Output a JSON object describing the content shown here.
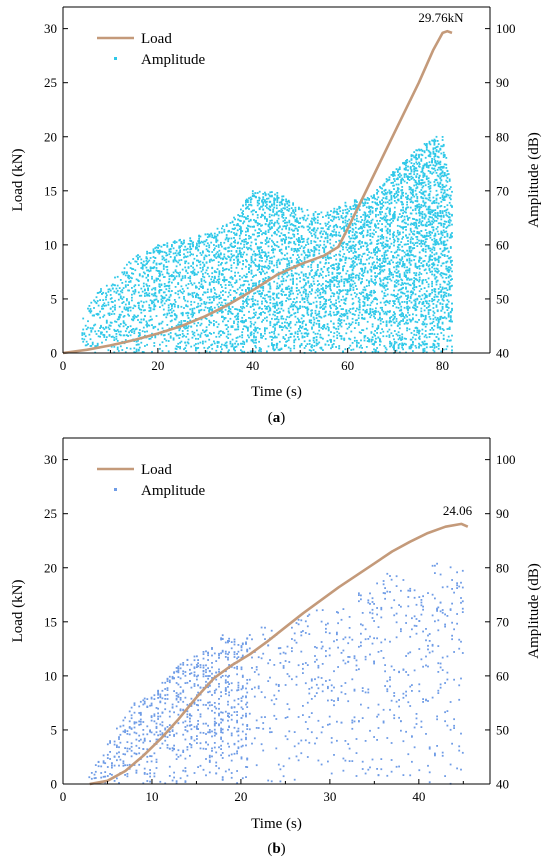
{
  "colors": {
    "load": "#c49a7a",
    "amplitude": "#2ec8e8",
    "amplitude_b": "#6f9ce6",
    "axis": "#000000"
  },
  "chart_data": [
    {
      "panel": "(a)",
      "panel_letter": "a",
      "type": "line+scatter",
      "xlabel": "Time (s)",
      "ylabel": "Load (kN)",
      "y2label": "Amplitude (dB)",
      "xlim": [
        0,
        90
      ],
      "ylim": [
        0,
        32
      ],
      "y2lim": [
        40,
        104
      ],
      "xticks": [
        0,
        20,
        40,
        60,
        80
      ],
      "yticks": [
        0,
        5,
        10,
        15,
        20,
        25,
        30
      ],
      "y2ticks": [
        40,
        50,
        60,
        70,
        80,
        90,
        100
      ],
      "legend": {
        "placement": "top-left",
        "entries": [
          "Load",
          "Amplitude"
        ]
      },
      "annotation": {
        "text": "29.76kN",
        "x": 80.5,
        "y": 29.76
      },
      "series": [
        {
          "name": "Load",
          "axis": "left",
          "type": "line",
          "x": [
            0,
            5,
            10,
            15,
            20,
            25,
            30,
            35,
            40,
            45,
            50,
            55,
            58,
            60,
            65,
            70,
            75,
            78,
            80,
            81,
            82
          ],
          "y": [
            0,
            0.3,
            0.7,
            1.2,
            1.8,
            2.5,
            3.4,
            4.5,
            5.8,
            7.2,
            8.2,
            9.0,
            9.8,
            11.5,
            16.0,
            20.5,
            25.0,
            28.0,
            29.6,
            29.76,
            29.6
          ]
        },
        {
          "name": "Amplitude",
          "axis": "right",
          "type": "scatter",
          "envelope": {
            "x": [
              4,
              6,
              8,
              10,
              15,
              20,
              25,
              30,
              35,
              40,
              45,
              50,
              55,
              60,
              65,
              70,
              75,
              78,
              80,
              82
            ],
            "max_dB": [
              46,
              50,
              52,
              53,
              58,
              60,
              61,
              62,
              64,
              70,
              70,
              67,
              66,
              68,
              69,
              74,
              78,
              80,
              80,
              70
            ]
          }
        }
      ]
    },
    {
      "panel": "(b)",
      "panel_letter": "b",
      "type": "line+scatter",
      "xlabel": "Time (s)",
      "ylabel": "Load (kN)",
      "y2label": "Amplitude (dB)",
      "xlim": [
        0,
        48
      ],
      "ylim": [
        0,
        32
      ],
      "y2lim": [
        40,
        104
      ],
      "xticks": [
        0,
        10,
        20,
        30,
        40
      ],
      "yticks": [
        0,
        5,
        10,
        15,
        20,
        25,
        30
      ],
      "y2ticks": [
        40,
        50,
        60,
        70,
        80,
        90,
        100
      ],
      "legend": {
        "placement": "top-left",
        "entries": [
          "Load",
          "Amplitude"
        ]
      },
      "annotation": {
        "text": "24.06",
        "x": 44.8,
        "y": 24.06
      },
      "series": [
        {
          "name": "Load",
          "axis": "left",
          "type": "line",
          "x": [
            3,
            5,
            7,
            9,
            11,
            13,
            15,
            17,
            19,
            21,
            23,
            25,
            27,
            29,
            31,
            33,
            35,
            37,
            39,
            41,
            43,
            44.8,
            45.5
          ],
          "y": [
            0,
            0.3,
            1.2,
            2.6,
            4.2,
            6.0,
            8.0,
            9.8,
            11.0,
            12.0,
            13.2,
            14.5,
            15.8,
            17.0,
            18.2,
            19.3,
            20.4,
            21.5,
            22.4,
            23.2,
            23.8,
            24.06,
            23.8
          ]
        },
        {
          "name": "Amplitude",
          "axis": "right",
          "type": "scatter",
          "envelope": {
            "x": [
              3,
              5,
              8,
              10,
              13,
              15,
              18,
              20,
              22,
              25,
              28,
              30,
              33,
              35,
              38,
              40,
              42,
              45
            ],
            "max_dB": [
              42,
              48,
              55,
              57,
              62,
              64,
              68,
              66,
              70,
              68,
              74,
              72,
              76,
              78,
              80,
              78,
              82,
              80
            ]
          }
        }
      ]
    }
  ]
}
